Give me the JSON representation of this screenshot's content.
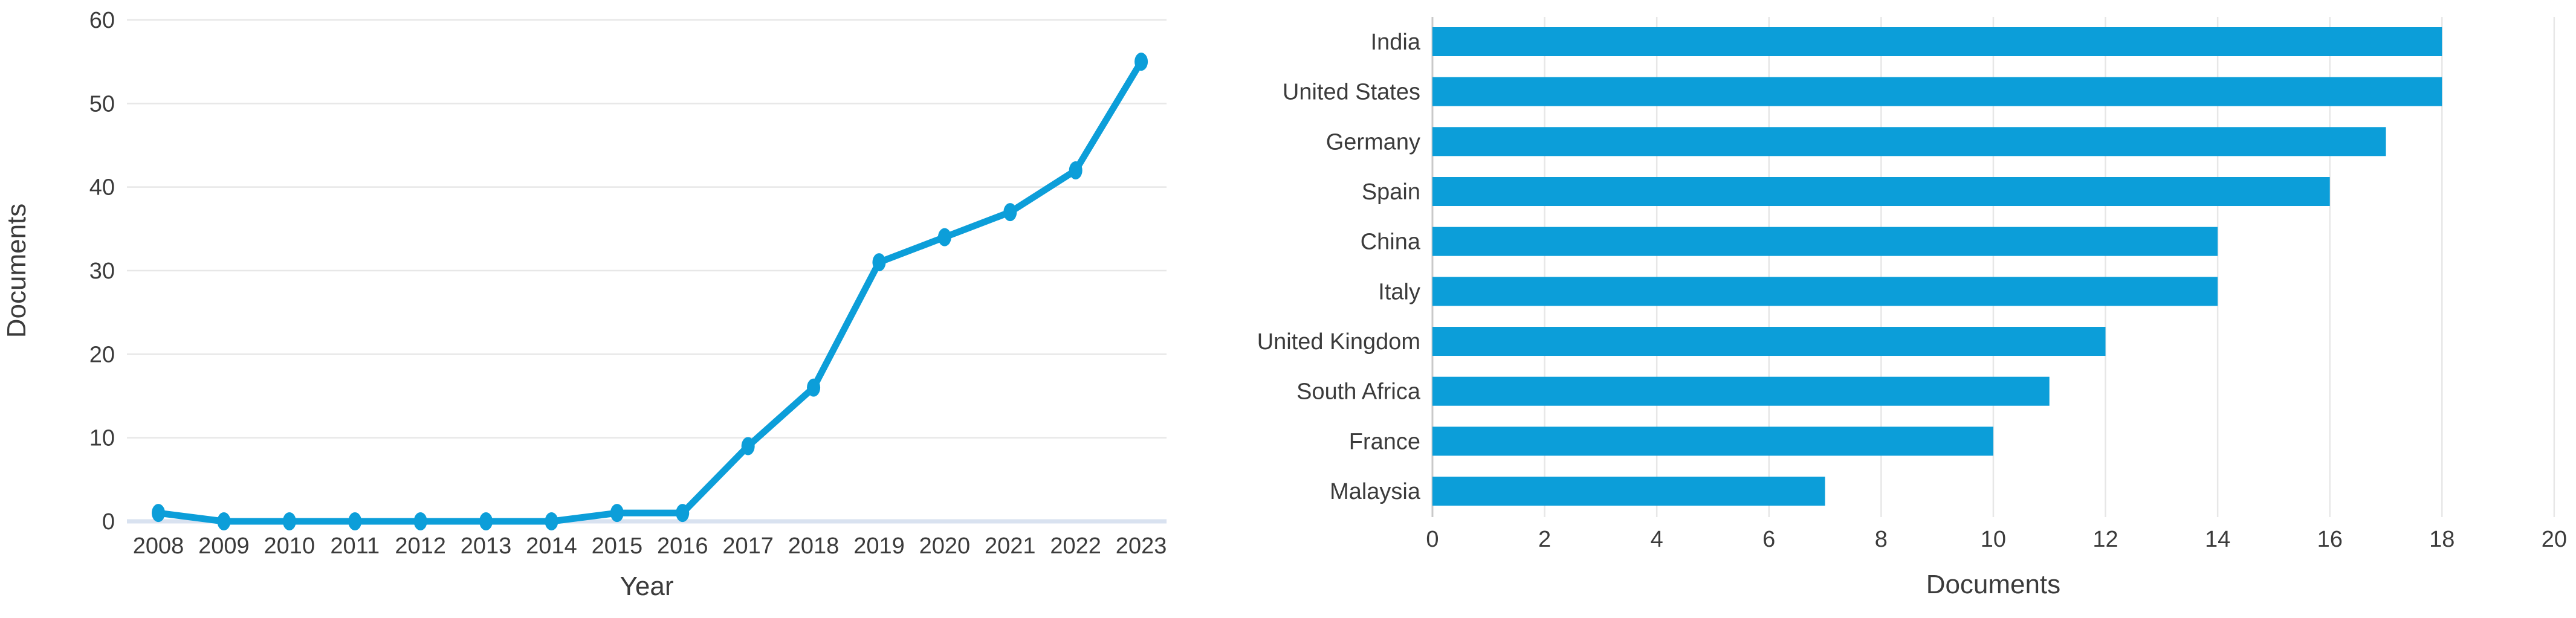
{
  "figure": {
    "background": "#ffffff",
    "accent_color": "#0C9ED9",
    "text_color": "#3b3b3b"
  },
  "chart_data": [
    {
      "id": "documents-by-year",
      "type": "line",
      "title": "",
      "xlabel": "Year",
      "ylabel": "Documents",
      "x": [
        "2008",
        "2009",
        "2010",
        "2011",
        "2012",
        "2013",
        "2014",
        "2015",
        "2016",
        "2017",
        "2018",
        "2019",
        "2020",
        "2021",
        "2022",
        "2023"
      ],
      "values": [
        1,
        0,
        0,
        0,
        0,
        0,
        0,
        1,
        1,
        9,
        16,
        31,
        34,
        37,
        42,
        55
      ],
      "ylim": [
        0,
        60
      ],
      "yticks": [
        0,
        10,
        20,
        30,
        40,
        50,
        60
      ],
      "grid": "horizontal",
      "legend": "none",
      "line_color": "#0C9ED9",
      "marker": "filled-circle",
      "grid_color": "#e7e7e7",
      "baseline_color": "#d9e2f0"
    },
    {
      "id": "documents-by-country",
      "type": "bar",
      "orientation": "horizontal",
      "title": "",
      "xlabel": "Documents",
      "ylabel": "",
      "categories": [
        "India",
        "United States",
        "Germany",
        "Spain",
        "China",
        "Italy",
        "United Kingdom",
        "South Africa",
        "France",
        "Malaysia"
      ],
      "values": [
        18,
        18,
        17,
        16,
        14,
        14,
        12,
        11,
        10,
        7
      ],
      "xlim": [
        0,
        20
      ],
      "xticks": [
        0,
        2,
        4,
        6,
        8,
        10,
        12,
        14,
        16,
        18,
        20
      ],
      "grid": "vertical",
      "legend": "none",
      "bar_color": "#0C9ED9",
      "grid_color": "#e7e7e7",
      "axis_color": "#c9c9c9"
    }
  ]
}
